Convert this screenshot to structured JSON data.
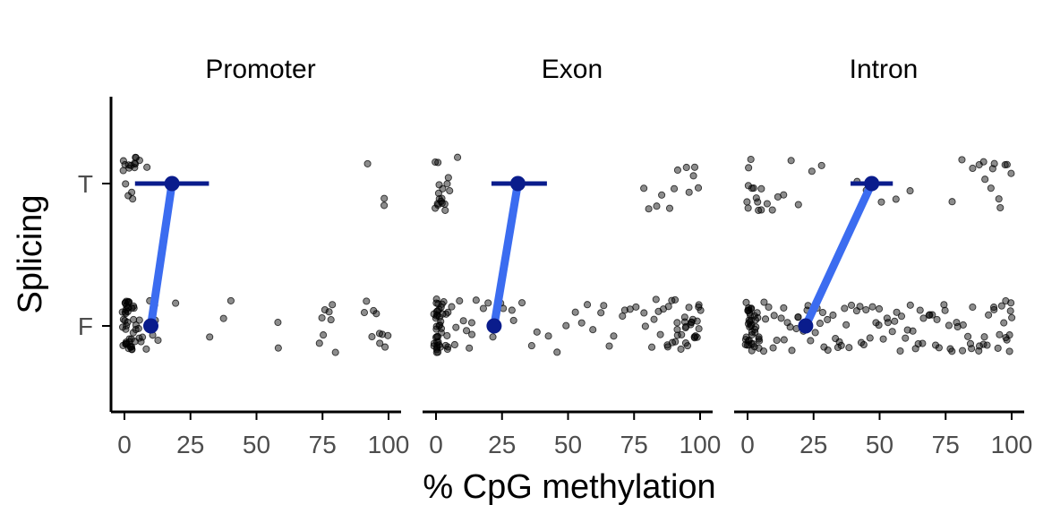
{
  "chart_data": {
    "type": "scatter",
    "xlabel": "% CpG methylation",
    "ylabel": "Splicing",
    "x_ticks": [
      "0",
      "25",
      "50",
      "75",
      "100"
    ],
    "xlim": [
      0,
      100
    ],
    "y_categories": [
      "F",
      "T"
    ],
    "colors": {
      "points": "#000000",
      "mean_line": "#3b6cf0",
      "mean_point": "#0a1c8c",
      "error_bar": "#0a1c8c"
    },
    "facets": [
      {
        "name": "Promoter",
        "summary": {
          "F": {
            "mean": 10
          },
          "T": {
            "mean": 18,
            "ci": [
              4,
              32
            ]
          }
        },
        "points": {
          "T": [
            0,
            0,
            1,
            1,
            1,
            2,
            2,
            2,
            3,
            3,
            4,
            4,
            4,
            5,
            5,
            6,
            8,
            92,
            98,
            99
          ],
          "F": [
            0,
            0,
            0,
            0,
            0,
            0,
            0,
            0,
            0,
            0,
            0,
            0,
            0,
            1,
            1,
            1,
            1,
            1,
            1,
            1,
            1,
            1,
            1,
            1,
            2,
            2,
            2,
            2,
            2,
            2,
            2,
            2,
            3,
            3,
            3,
            3,
            3,
            4,
            4,
            4,
            4,
            5,
            5,
            5,
            6,
            6,
            7,
            8,
            9,
            10,
            11,
            12,
            13,
            19,
            33,
            38,
            40,
            58,
            58,
            73,
            74,
            75,
            76,
            77,
            78,
            79,
            80,
            90,
            91,
            93,
            94,
            95,
            96,
            97,
            98,
            99,
            100
          ]
        }
      },
      {
        "name": "Exon",
        "summary": {
          "F": {
            "mean": 22
          },
          "T": {
            "mean": 31,
            "ci": [
              21,
              42
            ]
          }
        },
        "points": {
          "T": [
            0,
            0,
            0,
            1,
            1,
            1,
            1,
            2,
            2,
            2,
            3,
            3,
            3,
            4,
            4,
            5,
            6,
            8,
            78,
            80,
            84,
            86,
            88,
            90,
            92,
            94,
            96,
            97,
            98,
            99
          ],
          "F": [
            0,
            0,
            0,
            0,
            0,
            0,
            0,
            0,
            0,
            0,
            0,
            0,
            0,
            0,
            0,
            1,
            1,
            1,
            1,
            1,
            1,
            1,
            1,
            1,
            1,
            1,
            2,
            2,
            2,
            2,
            2,
            2,
            2,
            3,
            3,
            3,
            3,
            4,
            4,
            4,
            5,
            5,
            6,
            7,
            8,
            9,
            10,
            11,
            12,
            13,
            14,
            16,
            18,
            20,
            22,
            24,
            26,
            28,
            30,
            33,
            36,
            39,
            42,
            46,
            49,
            52,
            55,
            58,
            60,
            62,
            64,
            66,
            68,
            70,
            72,
            74,
            76,
            78,
            80,
            81,
            82,
            83,
            84,
            85,
            86,
            87,
            88,
            88,
            89,
            90,
            90,
            91,
            91,
            92,
            92,
            93,
            93,
            94,
            94,
            95,
            95,
            95,
            96,
            96,
            96,
            97,
            97,
            97,
            98,
            98,
            98,
            99,
            99,
            99,
            100,
            100,
            100
          ]
        }
      },
      {
        "name": "Intron",
        "summary": {
          "F": {
            "mean": 22
          },
          "T": {
            "mean": 47,
            "ci": [
              39,
              55
            ]
          }
        },
        "points": {
          "T": [
            0,
            0,
            1,
            1,
            1,
            2,
            2,
            3,
            3,
            4,
            5,
            6,
            8,
            10,
            12,
            14,
            17,
            19,
            25,
            28,
            42,
            45,
            50,
            56,
            62,
            78,
            82,
            85,
            87,
            89,
            90,
            92,
            93,
            94,
            95,
            96,
            97,
            98,
            99
          ],
          "F": [
            0,
            0,
            0,
            0,
            0,
            0,
            0,
            0,
            0,
            0,
            0,
            0,
            0,
            0,
            1,
            1,
            1,
            1,
            1,
            1,
            1,
            1,
            1,
            1,
            2,
            2,
            2,
            2,
            2,
            2,
            2,
            3,
            3,
            3,
            3,
            4,
            4,
            4,
            5,
            5,
            6,
            6,
            7,
            8,
            9,
            10,
            11,
            12,
            13,
            14,
            15,
            16,
            17,
            18,
            19,
            20,
            21,
            22,
            23,
            24,
            25,
            26,
            27,
            28,
            29,
            30,
            31,
            32,
            33,
            34,
            35,
            36,
            37,
            38,
            39,
            40,
            41,
            42,
            43,
            44,
            45,
            46,
            47,
            48,
            49,
            50,
            51,
            52,
            53,
            54,
            55,
            56,
            57,
            58,
            59,
            60,
            61,
            62,
            63,
            64,
            65,
            66,
            67,
            68,
            69,
            70,
            71,
            72,
            73,
            74,
            75,
            76,
            77,
            78,
            79,
            80,
            81,
            82,
            83,
            84,
            85,
            86,
            87,
            88,
            89,
            90,
            91,
            92,
            93,
            94,
            95,
            96,
            97,
            97,
            98,
            98,
            99,
            99,
            99,
            100,
            100,
            100
          ]
        }
      }
    ]
  }
}
